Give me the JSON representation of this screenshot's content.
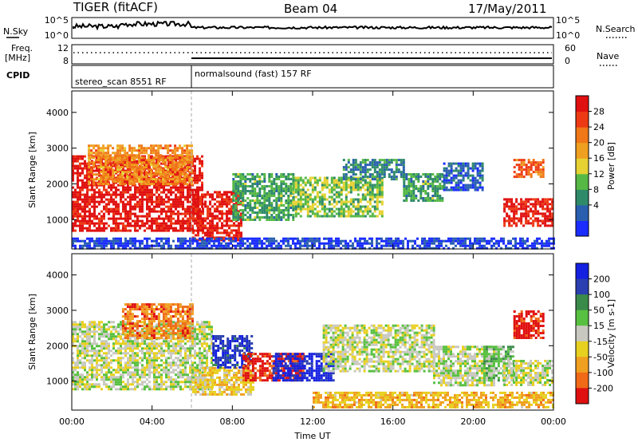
{
  "header": {
    "title": "TIGER (fitACF)",
    "beam": "Beam 04",
    "date": "17/May/2011"
  },
  "strip": {
    "nsky_label": "N.Sky",
    "nsky_ticks": [
      "10^5",
      "10^0"
    ],
    "nsearch_label": "N.Search",
    "nsearch_ticks": [
      "10^5",
      "10^0"
    ],
    "freq_label_1": "Freq.",
    "freq_label_2": "[MHz]",
    "freq_ticks": [
      "12",
      "8"
    ],
    "nave_label": "Nave",
    "nave_ticks": [
      "60",
      "0"
    ],
    "cpid_label": "CPID",
    "cpid_entries": [
      {
        "label": "stereo_scan 8551 RF",
        "start": 0.0,
        "end": 6.0
      },
      {
        "label": "normalsound (fast) 157 RF",
        "start": 6.0,
        "end": 24.0
      }
    ]
  },
  "chart_data": [
    {
      "type": "heatmap",
      "name": "power-panel",
      "ylabel": "Slant Range [km]",
      "xlabel": "",
      "xlim": [
        0,
        24
      ],
      "ylim": [
        180,
        4600
      ],
      "yticks": [
        "1000",
        "2000",
        "3000",
        "4000"
      ],
      "yticks_values": [
        1000,
        2000,
        3000,
        4000
      ],
      "colorbar": {
        "label": "Power [dB]",
        "ticks": [
          "4",
          "8",
          "12",
          "16",
          "20",
          "24",
          "28"
        ],
        "tick_values": [
          4,
          8,
          12,
          16,
          20,
          24,
          28
        ],
        "colors": [
          "#1a2cff",
          "#2a5fb0",
          "#2f8a6a",
          "#56b845",
          "#e6d232",
          "#f0a020",
          "#f07818",
          "#ee3a14",
          "#e01010"
        ]
      },
      "regions": [
        {
          "t0": 0.0,
          "t1": 6.5,
          "r0": 700,
          "r1": 2800,
          "level": 27
        },
        {
          "t0": 0.8,
          "t1": 6.0,
          "r0": 2000,
          "r1": 3100,
          "level": 20
        },
        {
          "t0": 6.0,
          "t1": 8.5,
          "r0": 400,
          "r1": 1800,
          "level": 26
        },
        {
          "t0": 8.0,
          "t1": 11.0,
          "r0": 1000,
          "r1": 2300,
          "level": 12
        },
        {
          "t0": 11.0,
          "t1": 15.5,
          "r0": 1100,
          "r1": 2200,
          "level": 14
        },
        {
          "t0": 13.5,
          "t1": 16.5,
          "r0": 2100,
          "r1": 2700,
          "level": 10
        },
        {
          "t0": 16.5,
          "t1": 18.5,
          "r0": 1500,
          "r1": 2300,
          "level": 12
        },
        {
          "t0": 18.5,
          "t1": 20.5,
          "r0": 1800,
          "r1": 2600,
          "level": 8
        },
        {
          "t0": 21.5,
          "t1": 24.0,
          "r0": 800,
          "r1": 1600,
          "level": 26
        },
        {
          "t0": 22.0,
          "t1": 23.5,
          "r0": 2200,
          "r1": 2700,
          "level": 22
        },
        {
          "t0": 0.0,
          "t1": 24.0,
          "r0": 200,
          "r1": 500,
          "level": 6
        }
      ]
    },
    {
      "type": "heatmap",
      "name": "velocity-panel",
      "ylabel": "Slant Range [km]",
      "xlabel": "Time UT",
      "xlim": [
        0,
        24
      ],
      "ylim": [
        180,
        4600
      ],
      "xticks": [
        "00:00",
        "04:00",
        "08:00",
        "12:00",
        "16:00",
        "20:00",
        "00:00"
      ],
      "xticks_values": [
        0,
        4,
        8,
        12,
        16,
        20,
        24
      ],
      "yticks": [
        "1000",
        "2000",
        "3000",
        "4000"
      ],
      "yticks_values": [
        1000,
        2000,
        3000,
        4000
      ],
      "colorbar": {
        "label": "Velocity [m s-1]",
        "ticks": [
          "200",
          "100",
          "50",
          "15",
          "-15",
          "-50",
          "-100",
          "-200"
        ],
        "tick_values": [
          200,
          100,
          50,
          15,
          -15,
          -50,
          -100,
          -200
        ],
        "colors": [
          "#1420e0",
          "#2a3fb0",
          "#3a8a4a",
          "#58c040",
          "#c8c8c0",
          "#e8d020",
          "#f0a020",
          "#f06a18",
          "#e01010"
        ]
      },
      "regions": [
        {
          "t0": 0.0,
          "t1": 7.0,
          "r0": 800,
          "r1": 2700,
          "level": 0
        },
        {
          "t0": 2.5,
          "t1": 6.0,
          "r0": 2200,
          "r1": 3200,
          "level": -120
        },
        {
          "t0": 6.0,
          "t1": 9.0,
          "r0": 600,
          "r1": 1400,
          "level": -40
        },
        {
          "t0": 7.0,
          "t1": 9.0,
          "r0": 1400,
          "r1": 2300,
          "level": 150
        },
        {
          "t0": 8.5,
          "t1": 11.5,
          "r0": 1000,
          "r1": 1800,
          "level": -180
        },
        {
          "t0": 10.0,
          "t1": 13.0,
          "r0": 1000,
          "r1": 1800,
          "level": 180
        },
        {
          "t0": 12.5,
          "t1": 18.0,
          "r0": 1300,
          "r1": 2600,
          "level": 0
        },
        {
          "t0": 18.0,
          "t1": 21.0,
          "r0": 900,
          "r1": 2000,
          "level": 0
        },
        {
          "t0": 20.5,
          "t1": 22.0,
          "r0": 1000,
          "r1": 2000,
          "level": 40
        },
        {
          "t0": 21.5,
          "t1": 24.0,
          "r0": 900,
          "r1": 1600,
          "level": 0
        },
        {
          "t0": 22.0,
          "t1": 23.5,
          "r0": 2200,
          "r1": 3000,
          "level": -180
        },
        {
          "t0": 12.0,
          "t1": 24.0,
          "r0": 250,
          "r1": 700,
          "level": -70
        }
      ]
    }
  ]
}
